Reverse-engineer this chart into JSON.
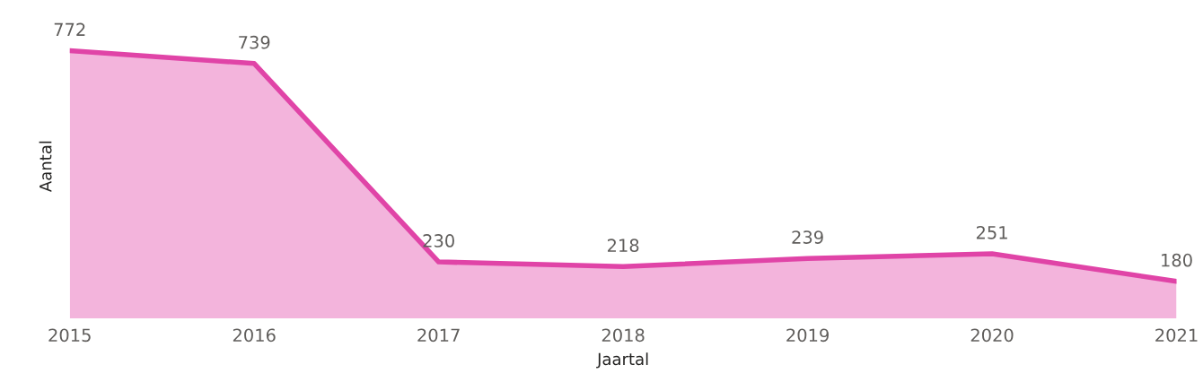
{
  "chart_data": {
    "type": "area",
    "xlabel": "Jaartal",
    "ylabel": "Aantal",
    "categories": [
      "2015",
      "2016",
      "2017",
      "2018",
      "2019",
      "2020",
      "2021"
    ],
    "series": [
      {
        "color": "#e044a7",
        "values": [
          772,
          739,
          230,
          218,
          239,
          251,
          180
        ]
      }
    ],
    "data_labels": true,
    "tick_labels": "x",
    "marker": "none",
    "line_style": "solid"
  }
}
